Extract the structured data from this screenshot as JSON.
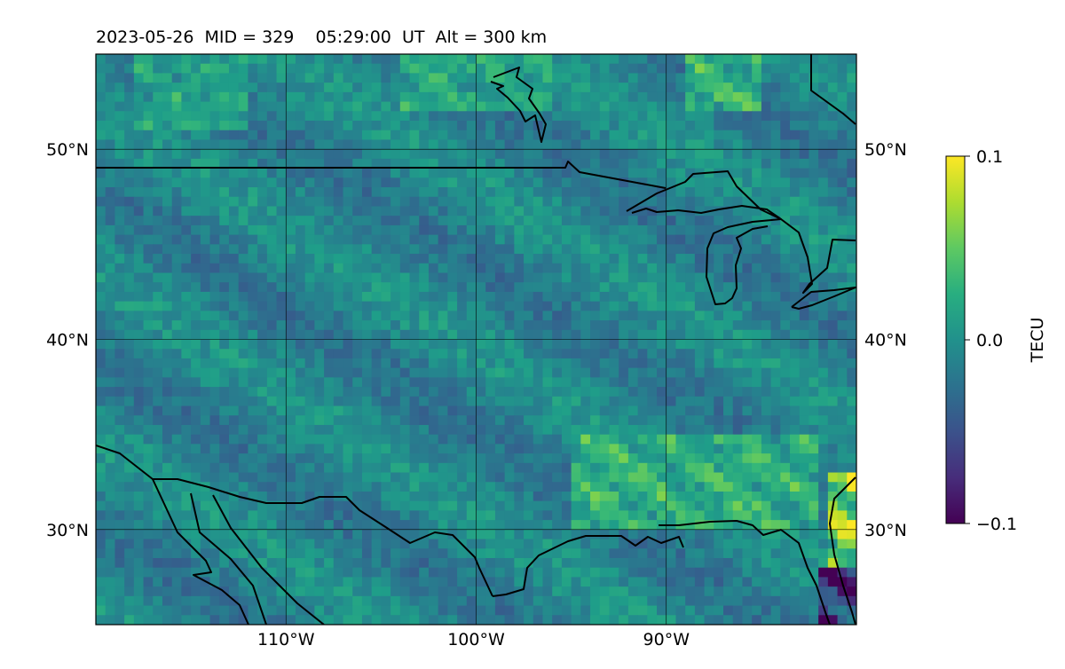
{
  "chart_data": {
    "type": "heatmap",
    "title": "2023-05-26  MID = 329    05:29:00  UT  Alt = 300 km",
    "colormap": "viridis",
    "extent": {
      "lon": [
        -120,
        -80
      ],
      "lat": [
        25,
        55
      ]
    },
    "x_ticks": [
      {
        "value": -110,
        "label": "110°W"
      },
      {
        "value": -100,
        "label": "100°W"
      },
      {
        "value": -90,
        "label": "90°W"
      }
    ],
    "y_ticks": [
      {
        "value": 30,
        "label": "30°N"
      },
      {
        "value": 40,
        "label": "40°N"
      },
      {
        "value": 50,
        "label": "50°N"
      }
    ],
    "grid": true,
    "colorbar": {
      "label": "TECU",
      "min": -0.1,
      "max": 0.1,
      "ticks": [
        {
          "value": 0.1,
          "label": "0.1"
        },
        {
          "value": 0.0,
          "label": "0.0"
        },
        {
          "value": -0.1,
          "label": "−0.1"
        }
      ]
    },
    "value_bands": [
      {
        "lon": [
          -118,
          -112
        ],
        "lat": [
          51,
          55
        ],
        "value": 0.02,
        "note": "green wave crests, northwest"
      },
      {
        "lon": [
          -104,
          -96
        ],
        "lat": [
          52,
          55
        ],
        "value": 0.03,
        "note": "wave crests, north"
      },
      {
        "lon": [
          -89,
          -85
        ],
        "lat": [
          52,
          55
        ],
        "value": 0.04,
        "note": "wave crests, northeast"
      },
      {
        "lon": [
          -95,
          -82
        ],
        "lat": [
          30,
          35
        ],
        "value": 0.04,
        "note": "enhanced band, southeast"
      },
      {
        "lon": [
          -81.5,
          -80
        ],
        "lat": [
          27,
          33
        ],
        "value": 0.1,
        "note": "yellow enhancement, Florida/Georgia coast"
      },
      {
        "lon": [
          -82,
          -80
        ],
        "lat": [
          25,
          28
        ],
        "value": -0.1,
        "note": "dark pixels, southern Florida"
      }
    ],
    "background_value": -0.01
  }
}
